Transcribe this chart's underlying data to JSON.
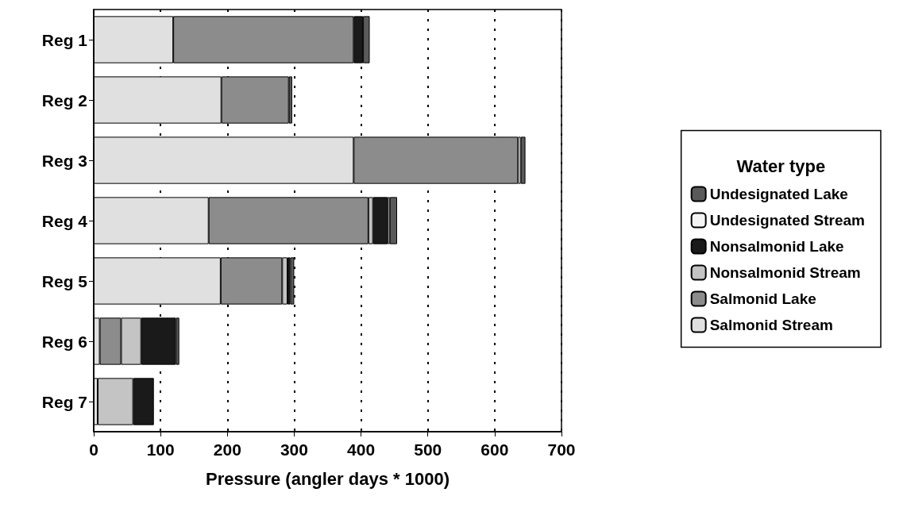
{
  "chart_data": {
    "type": "bar",
    "orientation": "horizontal",
    "stacked": true,
    "xlabel": "Pressure (angler days * 1000)",
    "legend_title": "Water type",
    "legend": "right",
    "grid": "x",
    "categories": [
      "Reg 1",
      "Reg 2",
      "Reg 3",
      "Reg 4",
      "Reg 5",
      "Reg 6",
      "Reg 7"
    ],
    "xlim": [
      0,
      700
    ],
    "xticks": [
      0,
      100,
      200,
      300,
      400,
      500,
      600,
      700
    ],
    "series": [
      {
        "name": "Salmonid Stream",
        "color": "#e0e0e0",
        "values": [
          119,
          191,
          389,
          172,
          190,
          9,
          6
        ]
      },
      {
        "name": "Salmonid Lake",
        "color": "#8c8c8c",
        "values": [
          270,
          101,
          246,
          239,
          92,
          32,
          null
        ]
      },
      {
        "name": "Nonsalmonid Stream",
        "color": "#c4c4c4",
        "values": [
          null,
          null,
          null,
          7,
          8,
          30,
          53
        ]
      },
      {
        "name": "Nonsalmonid Lake",
        "color": "#1a1a1a",
        "values": [
          14,
          null,
          null,
          22,
          4,
          52,
          31
        ]
      },
      {
        "name": "Undesignated Stream",
        "color": "#f4f4f4",
        "values": [
          null,
          null,
          4,
          3,
          null,
          null,
          null
        ]
      },
      {
        "name": "Undesignated Lake",
        "color": "#5a5a5a",
        "values": [
          10,
          5,
          7,
          11,
          6,
          5,
          null
        ]
      }
    ]
  }
}
